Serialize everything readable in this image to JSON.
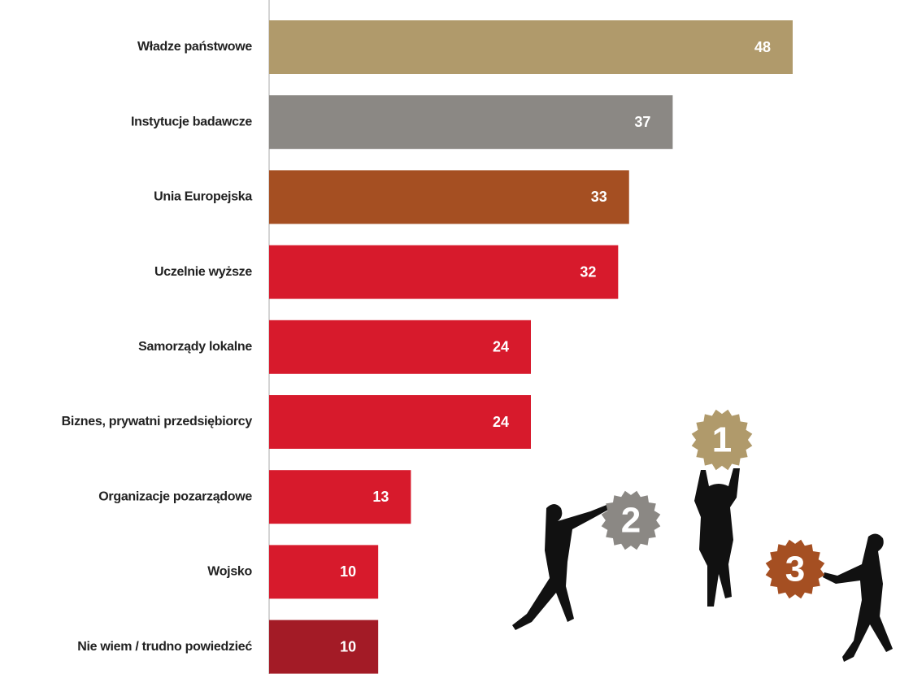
{
  "chart_data": {
    "type": "bar",
    "orientation": "horizontal",
    "categories": [
      "Władze państwowe",
      "Instytucje badawcze",
      "Unia Europejska",
      "Uczelnie wyższe",
      "Samorządy lokalne",
      "Biznes, prywatni przedsiębiorcy",
      "Organizacje pozarządowe",
      "Wojsko",
      "Nie wiem / trudno powiedzieć"
    ],
    "values": [
      48,
      37,
      33,
      32,
      24,
      24,
      13,
      10,
      10
    ],
    "colors": [
      "#b09a6b",
      "#8b8884",
      "#a54f22",
      "#d71a2c",
      "#d71a2c",
      "#d71a2c",
      "#d71a2c",
      "#d71a2c",
      "#a31b26"
    ],
    "annotations": [
      "1",
      "2",
      "3"
    ]
  }
}
